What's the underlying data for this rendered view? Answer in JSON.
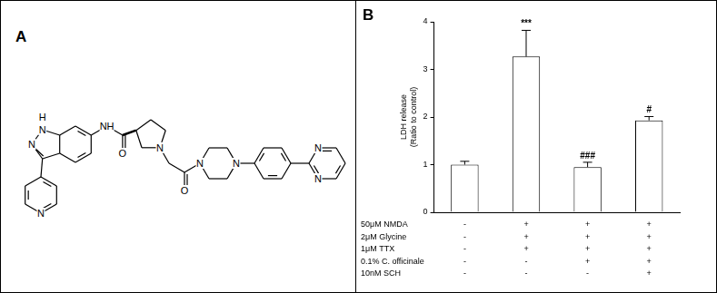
{
  "panel_labels": [
    "A",
    "B"
  ],
  "structure": {
    "atom_labels": [
      "H",
      "N",
      "N",
      "N",
      "NH",
      "O",
      "N",
      "O",
      "N",
      "N",
      "N",
      "N"
    ]
  },
  "chart_data": {
    "type": "bar",
    "y_label": [
      "LDH release",
      "(Ratio to control)"
    ],
    "categories": [
      null,
      null,
      null,
      null
    ],
    "values": [
      1.0,
      3.27,
      0.95,
      1.93
    ],
    "errors": [
      0.07,
      0.55,
      0.1,
      0.08
    ],
    "annotations": [
      null,
      "***",
      "###",
      "#"
    ],
    "color": "#ffffff",
    "ylim": [
      0,
      4
    ],
    "yticks": [
      0,
      1,
      2,
      3,
      4
    ],
    "grid": false,
    "tick_labels": "y",
    "conditions": [
      {
        "label": "50μM NMDA",
        "marks": [
          "-",
          "+",
          "+",
          "+"
        ]
      },
      {
        "label": "2μM Glycine",
        "marks": [
          "-",
          "+",
          "+",
          "+"
        ]
      },
      {
        "label": "1μM TTX",
        "marks": [
          "-",
          "+",
          "+",
          "+"
        ]
      },
      {
        "label": "0.1% C. officinale",
        "marks": [
          "-",
          "-",
          "+",
          "+"
        ]
      },
      {
        "label": "10nM SCH",
        "marks": [
          "-",
          "-",
          "-",
          "+"
        ]
      }
    ]
  }
}
